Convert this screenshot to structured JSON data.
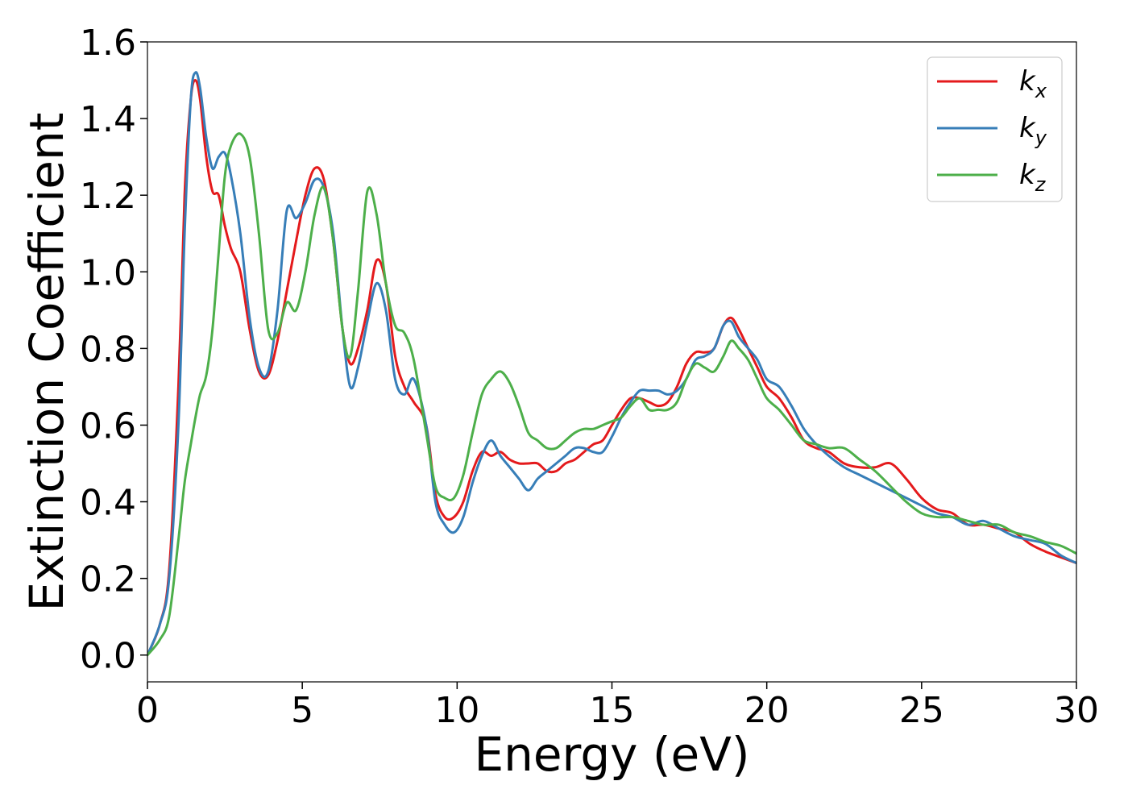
{
  "chart_data": {
    "type": "line",
    "xlabel": "Energy (eV)",
    "ylabel": "Extinction Coefficient",
    "xlim": [
      0,
      30
    ],
    "ylim": [
      -0.07,
      1.6
    ],
    "xticks": [
      0,
      5,
      10,
      15,
      20,
      25,
      30
    ],
    "xtick_labels": [
      "0",
      "5",
      "10",
      "15",
      "20",
      "25",
      "30"
    ],
    "yticks": [
      0.0,
      0.2,
      0.4,
      0.6,
      0.8,
      1.0,
      1.2,
      1.4,
      1.6
    ],
    "ytick_labels": [
      "0.0",
      "0.2",
      "0.4",
      "0.6",
      "0.8",
      "1.0",
      "1.2",
      "1.4",
      "1.6"
    ],
    "grid": false,
    "legend_position": "top-right",
    "series": [
      {
        "name": "k",
        "subscript": "x",
        "color": "#e41a1c",
        "x": [
          0,
          0.4,
          0.7,
          1.0,
          1.2,
          1.4,
          1.55,
          1.7,
          1.9,
          2.1,
          2.3,
          2.5,
          2.7,
          3.0,
          3.3,
          3.6,
          3.9,
          4.2,
          4.5,
          4.8,
          5.1,
          5.4,
          5.7,
          6.0,
          6.3,
          6.55,
          6.8,
          7.1,
          7.4,
          7.7,
          8.0,
          8.3,
          8.6,
          9.0,
          9.3,
          9.6,
          9.9,
          10.2,
          10.5,
          10.8,
          11.1,
          11.4,
          11.7,
          12.0,
          12.3,
          12.6,
          12.9,
          13.2,
          13.5,
          13.8,
          14.1,
          14.4,
          14.7,
          15.0,
          15.3,
          15.6,
          15.9,
          16.2,
          16.5,
          16.8,
          17.1,
          17.4,
          17.7,
          18.0,
          18.3,
          18.6,
          18.85,
          19.1,
          19.4,
          19.7,
          20.0,
          20.4,
          20.8,
          21.2,
          21.6,
          22.0,
          22.5,
          23.0,
          23.5,
          24.0,
          24.5,
          25.0,
          25.5,
          26.0,
          26.5,
          27.0,
          27.5,
          28.0,
          28.5,
          29.0,
          29.5,
          30.0
        ],
        "y": [
          0.0,
          0.08,
          0.22,
          0.7,
          1.2,
          1.45,
          1.5,
          1.45,
          1.3,
          1.21,
          1.2,
          1.12,
          1.06,
          1.0,
          0.85,
          0.74,
          0.73,
          0.82,
          0.95,
          1.08,
          1.2,
          1.27,
          1.24,
          1.08,
          0.85,
          0.76,
          0.8,
          0.9,
          1.03,
          0.97,
          0.78,
          0.7,
          0.66,
          0.6,
          0.42,
          0.36,
          0.36,
          0.4,
          0.48,
          0.53,
          0.52,
          0.53,
          0.51,
          0.5,
          0.5,
          0.5,
          0.48,
          0.48,
          0.5,
          0.51,
          0.53,
          0.55,
          0.56,
          0.6,
          0.64,
          0.67,
          0.67,
          0.66,
          0.65,
          0.66,
          0.7,
          0.76,
          0.79,
          0.79,
          0.8,
          0.86,
          0.88,
          0.85,
          0.8,
          0.75,
          0.7,
          0.67,
          0.62,
          0.56,
          0.54,
          0.53,
          0.5,
          0.49,
          0.49,
          0.5,
          0.46,
          0.41,
          0.38,
          0.37,
          0.34,
          0.34,
          0.33,
          0.32,
          0.29,
          0.27,
          0.255,
          0.24
        ]
      },
      {
        "name": "k",
        "subscript": "y",
        "color": "#377eb8",
        "x": [
          0,
          0.4,
          0.7,
          1.0,
          1.2,
          1.4,
          1.55,
          1.7,
          1.9,
          2.1,
          2.3,
          2.5,
          2.7,
          3.0,
          3.3,
          3.6,
          3.9,
          4.2,
          4.5,
          4.8,
          5.1,
          5.4,
          5.7,
          6.0,
          6.3,
          6.55,
          6.8,
          7.1,
          7.4,
          7.7,
          8.0,
          8.3,
          8.6,
          9.0,
          9.3,
          9.6,
          9.9,
          10.2,
          10.5,
          10.8,
          11.1,
          11.4,
          11.7,
          12.0,
          12.3,
          12.6,
          12.9,
          13.2,
          13.5,
          13.8,
          14.1,
          14.4,
          14.7,
          15.0,
          15.3,
          15.6,
          15.9,
          16.2,
          16.5,
          16.8,
          17.1,
          17.4,
          17.7,
          18.0,
          18.3,
          18.6,
          18.85,
          19.1,
          19.4,
          19.7,
          20.0,
          20.4,
          20.8,
          21.2,
          21.6,
          22.0,
          22.5,
          23.0,
          23.5,
          24.0,
          24.5,
          25.0,
          25.5,
          26.0,
          26.5,
          27.0,
          27.5,
          28.0,
          28.5,
          29.0,
          29.5,
          30.0
        ],
        "y": [
          0.0,
          0.08,
          0.2,
          0.6,
          1.1,
          1.45,
          1.52,
          1.48,
          1.35,
          1.27,
          1.3,
          1.31,
          1.25,
          1.1,
          0.88,
          0.75,
          0.74,
          0.9,
          1.16,
          1.14,
          1.18,
          1.24,
          1.22,
          1.1,
          0.85,
          0.7,
          0.75,
          0.87,
          0.97,
          0.9,
          0.72,
          0.68,
          0.72,
          0.6,
          0.4,
          0.34,
          0.32,
          0.36,
          0.45,
          0.52,
          0.56,
          0.52,
          0.49,
          0.46,
          0.43,
          0.46,
          0.48,
          0.5,
          0.52,
          0.54,
          0.54,
          0.53,
          0.53,
          0.57,
          0.62,
          0.66,
          0.69,
          0.69,
          0.69,
          0.68,
          0.69,
          0.72,
          0.77,
          0.78,
          0.8,
          0.86,
          0.87,
          0.83,
          0.8,
          0.77,
          0.72,
          0.7,
          0.65,
          0.59,
          0.55,
          0.52,
          0.49,
          0.47,
          0.45,
          0.43,
          0.41,
          0.39,
          0.37,
          0.36,
          0.34,
          0.35,
          0.33,
          0.31,
          0.3,
          0.29,
          0.26,
          0.24
        ]
      },
      {
        "name": "k",
        "subscript": "z",
        "color": "#4daf4a",
        "x": [
          0,
          0.4,
          0.7,
          1.0,
          1.2,
          1.4,
          1.55,
          1.7,
          1.9,
          2.1,
          2.3,
          2.5,
          2.7,
          3.0,
          3.3,
          3.6,
          3.9,
          4.2,
          4.5,
          4.8,
          5.1,
          5.4,
          5.7,
          6.0,
          6.3,
          6.55,
          6.8,
          7.1,
          7.4,
          7.7,
          8.0,
          8.3,
          8.6,
          9.0,
          9.3,
          9.6,
          9.9,
          10.2,
          10.5,
          10.8,
          11.1,
          11.4,
          11.7,
          12.0,
          12.3,
          12.6,
          12.9,
          13.2,
          13.5,
          13.8,
          14.1,
          14.4,
          14.7,
          15.0,
          15.3,
          15.6,
          15.9,
          16.2,
          16.5,
          16.8,
          17.1,
          17.4,
          17.7,
          18.0,
          18.3,
          18.6,
          18.85,
          19.1,
          19.4,
          19.7,
          20.0,
          20.4,
          20.8,
          21.2,
          21.6,
          22.0,
          22.5,
          23.0,
          23.5,
          24.0,
          24.5,
          25.0,
          25.5,
          26.0,
          26.5,
          27.0,
          27.5,
          28.0,
          28.5,
          29.0,
          29.5,
          30.0
        ],
        "y": [
          0.0,
          0.04,
          0.1,
          0.3,
          0.45,
          0.55,
          0.62,
          0.68,
          0.73,
          0.85,
          1.05,
          1.25,
          1.33,
          1.36,
          1.3,
          1.1,
          0.85,
          0.84,
          0.92,
          0.9,
          1.0,
          1.15,
          1.22,
          1.08,
          0.85,
          0.78,
          0.95,
          1.21,
          1.15,
          0.97,
          0.86,
          0.84,
          0.77,
          0.58,
          0.44,
          0.41,
          0.41,
          0.47,
          0.58,
          0.68,
          0.72,
          0.74,
          0.71,
          0.65,
          0.58,
          0.56,
          0.54,
          0.54,
          0.56,
          0.58,
          0.59,
          0.59,
          0.6,
          0.61,
          0.62,
          0.65,
          0.67,
          0.64,
          0.64,
          0.64,
          0.66,
          0.72,
          0.76,
          0.75,
          0.74,
          0.78,
          0.82,
          0.8,
          0.77,
          0.72,
          0.67,
          0.64,
          0.6,
          0.56,
          0.55,
          0.54,
          0.54,
          0.51,
          0.48,
          0.44,
          0.4,
          0.37,
          0.36,
          0.36,
          0.35,
          0.34,
          0.34,
          0.32,
          0.31,
          0.295,
          0.285,
          0.265
        ]
      }
    ]
  }
}
